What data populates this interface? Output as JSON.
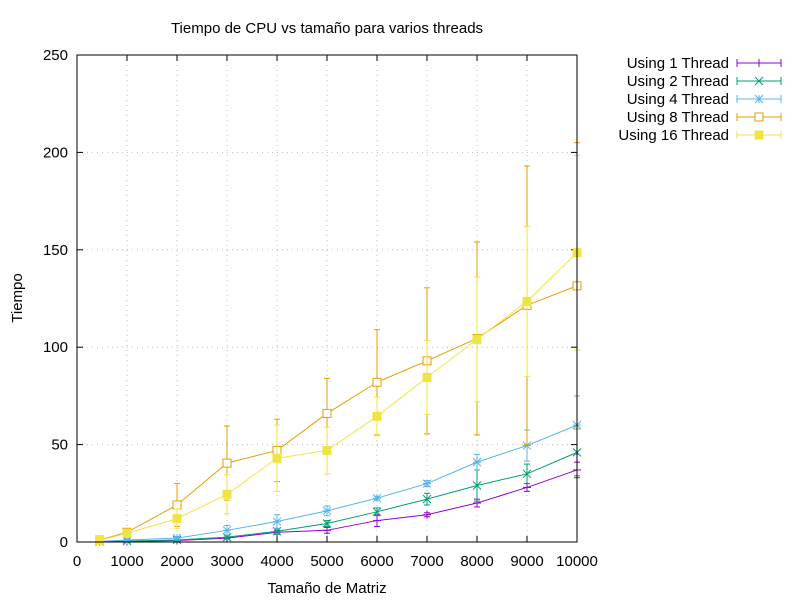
{
  "chart_data": {
    "type": "line",
    "title": "Tiempo de CPU vs tamaño para varios threads",
    "xlabel": "Tamaño de Matriz",
    "ylabel": "Tiempo",
    "xlim": [
      0,
      10000
    ],
    "ylim": [
      0,
      250
    ],
    "xticks": [
      "0",
      "1000",
      "2000",
      "3000",
      "4000",
      "5000",
      "6000",
      "7000",
      "8000",
      "9000",
      "10000"
    ],
    "yticks": [
      "0",
      "50",
      "100",
      "150",
      "200",
      "250"
    ],
    "grid": true,
    "legend_position": "outside-top-right",
    "x": [
      450,
      1000,
      2000,
      3000,
      4000,
      5000,
      6000,
      7000,
      8000,
      9000,
      10000
    ],
    "series": [
      {
        "name": "Using 1 Thread",
        "color": "#9400d3",
        "marker": "plus",
        "values": [
          0.1,
          0.3,
          0.8,
          2.0,
          5.0,
          6.0,
          11.0,
          14.0,
          20.0,
          28.0,
          37.0
        ],
        "errors": [
          0.05,
          0.1,
          0.2,
          0.5,
          1.0,
          1.5,
          3.0,
          1.0,
          2.0,
          2.0,
          4.0
        ]
      },
      {
        "name": "Using 2 Thread",
        "color": "#009e73",
        "marker": "cross",
        "values": [
          0.2,
          0.5,
          1.0,
          2.5,
          5.5,
          9.5,
          15.5,
          22.0,
          29.0,
          35.0,
          46.0
        ],
        "errors": [
          0.05,
          0.2,
          0.3,
          0.8,
          1.5,
          1.5,
          2.0,
          3.0,
          8.0,
          5.0,
          12.0
        ]
      },
      {
        "name": "Using 4 Thread",
        "color": "#56b4e9",
        "marker": "star",
        "values": [
          0.3,
          1.0,
          2.0,
          6.0,
          10.5,
          16.0,
          22.5,
          30.0,
          41.0,
          49.5,
          60.0
        ],
        "errors": [
          0.1,
          0.4,
          0.8,
          2.5,
          3.5,
          2.5,
          1.0,
          1.5,
          4.0,
          8.0,
          15.0
        ]
      },
      {
        "name": "Using 8 Thread",
        "color": "#e69f00",
        "marker": "open-square",
        "values": [
          1.0,
          5.0,
          19.0,
          40.5,
          47.0,
          66.0,
          82.0,
          93.0,
          104.5,
          121.5,
          131.5
        ],
        "errors": [
          0.5,
          1.0,
          11.0,
          19.0,
          16.0,
          18.0,
          27.0,
          37.5,
          49.5,
          71.5,
          73.5
        ]
      },
      {
        "name": "Using 16 Thread",
        "color": "#f0e442",
        "marker": "filled-square",
        "values": [
          0.8,
          4.5,
          12.0,
          24.5,
          43.0,
          47.0,
          64.5,
          84.5,
          104.0,
          123.5,
          148.5
        ],
        "errors": [
          0.3,
          1.0,
          5.0,
          10.0,
          17.0,
          12.0,
          10.0,
          19.0,
          32.0,
          38.5,
          50.0
        ]
      }
    ]
  }
}
